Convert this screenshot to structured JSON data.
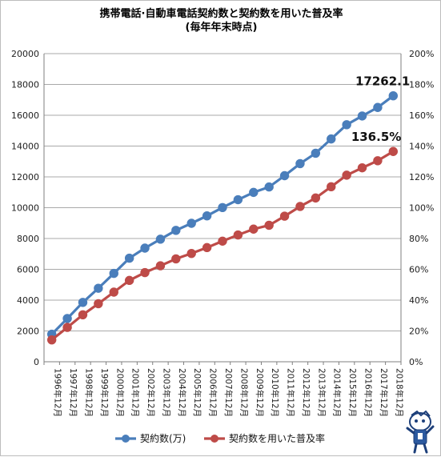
{
  "chart_data": {
    "type": "line",
    "title": "携帯電話·自動車電話契約数と契約数を用いた普及率",
    "subtitle": "(毎年年末時点)",
    "categories": [
      "1996年12月",
      "1997年12月",
      "1998年12月",
      "1999年12月",
      "2000年12月",
      "2001年12月",
      "2002年12月",
      "2003年12月",
      "2004年12月",
      "2005年12月",
      "2006年12月",
      "2007年12月",
      "2008年12月",
      "2009年12月",
      "2010年12月",
      "2011年12月",
      "2012年12月",
      "2013年12月",
      "2014年12月",
      "2015年12月",
      "2016年12月",
      "2017年12月",
      "2018年12月"
    ],
    "series": [
      {
        "name": "契約数(万)",
        "axis": "left",
        "color": "#4a7ebb",
        "values": [
          1788,
          2807,
          3853,
          4772,
          5737,
          6723,
          7376,
          7956,
          8530,
          8987,
          9471,
          10011,
          10518,
          10993,
          11345,
          12078,
          12861,
          13537,
          14461,
          15387,
          15953,
          16506,
          17262.1
        ]
      },
      {
        "name": "契約数を用いた普及率",
        "axis": "right",
        "color": "#be4b48",
        "values": [
          14.2,
          22.3,
          30.5,
          37.7,
          45.2,
          52.8,
          57.9,
          62.3,
          66.8,
          70.3,
          74.1,
          78.3,
          82.3,
          86.1,
          88.6,
          94.5,
          100.8,
          106.3,
          113.6,
          121.1,
          125.9,
          130.5,
          136.5
        ]
      }
    ],
    "ylim_left": [
      0,
      20000
    ],
    "yticks_left": [
      "0",
      "2000",
      "4000",
      "6000",
      "8000",
      "10000",
      "12000",
      "14000",
      "16000",
      "18000",
      "20000"
    ],
    "ylim_right": [
      0,
      200
    ],
    "yticks_right": [
      "0%",
      "20%",
      "40%",
      "60%",
      "80%",
      "100%",
      "120%",
      "140%",
      "160%",
      "180%",
      "200%"
    ],
    "grid": true,
    "legend": "bottom",
    "annotations": [
      "17262.1",
      "136.5%"
    ],
    "watermark_icon": "mascot-figure-icon"
  }
}
